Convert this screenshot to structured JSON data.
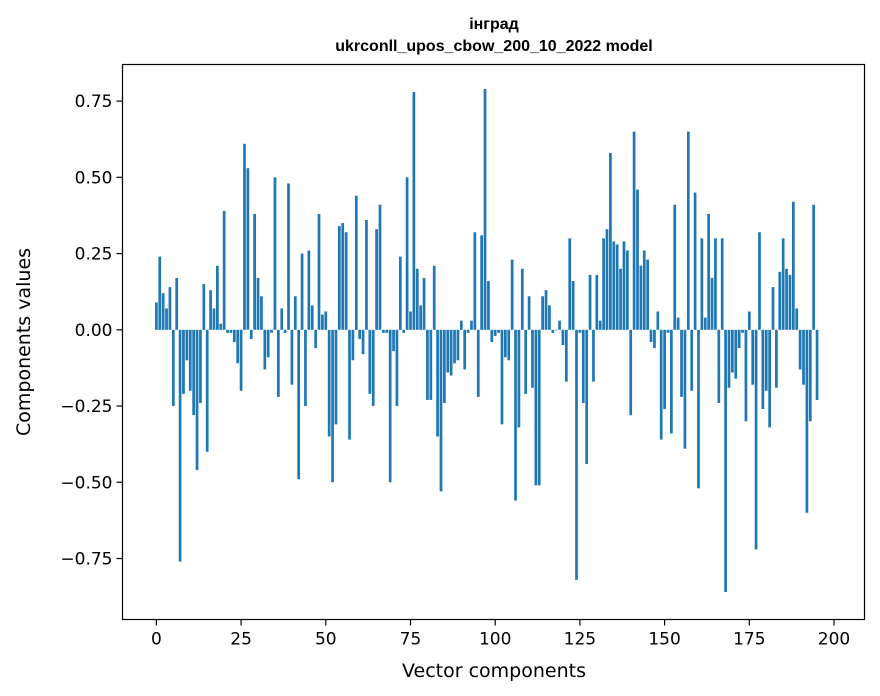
{
  "chart_data": {
    "type": "bar",
    "title": "інград",
    "subtitle": "ukrconll_upos_cbow_200_10_2022 model",
    "xlabel": "Vector components",
    "ylabel": "Components values",
    "xlim": [
      -10,
      209
    ],
    "ylim": [
      -0.95,
      0.87
    ],
    "xticks": [
      0,
      25,
      50,
      75,
      100,
      125,
      150,
      175,
      200
    ],
    "xtick_labels": [
      "0",
      "25",
      "50",
      "75",
      "100",
      "125",
      "150",
      "175",
      "200"
    ],
    "yticks": [
      -0.75,
      -0.5,
      -0.25,
      0.0,
      0.25,
      0.5,
      0.75
    ],
    "ytick_labels": [
      "−0.75",
      "−0.50",
      "−0.25",
      "0.00",
      "0.25",
      "0.50",
      "0.75"
    ],
    "bar_color": "#1f77b4",
    "grid": false,
    "values": [
      0.09,
      0.24,
      0.12,
      0.07,
      0.14,
      -0.25,
      0.17,
      -0.76,
      -0.21,
      -0.1,
      -0.2,
      -0.28,
      -0.46,
      -0.24,
      0.15,
      -0.4,
      0.13,
      0.07,
      0.21,
      0.02,
      0.39,
      -0.01,
      -0.01,
      -0.04,
      -0.11,
      -0.2,
      0.61,
      0.53,
      -0.03,
      0.38,
      0.17,
      0.11,
      -0.13,
      -0.09,
      -0.01,
      0.5,
      -0.22,
      0.07,
      -0.01,
      0.48,
      -0.18,
      0.11,
      -0.49,
      0.25,
      -0.25,
      0.26,
      0.08,
      -0.06,
      0.38,
      0.05,
      0.06,
      -0.35,
      -0.5,
      -0.31,
      0.34,
      0.35,
      0.32,
      -0.36,
      -0.1,
      0.44,
      -0.03,
      -0.08,
      0.36,
      -0.21,
      -0.25,
      0.33,
      0.41,
      -0.01,
      -0.01,
      -0.5,
      -0.07,
      -0.25,
      0.24,
      -0.01,
      0.5,
      0.06,
      0.78,
      0.2,
      0.08,
      0.17,
      -0.23,
      -0.23,
      0.21,
      -0.35,
      -0.53,
      -0.24,
      -0.14,
      -0.15,
      -0.11,
      -0.1,
      0.03,
      -0.13,
      -0.01,
      0.03,
      0.32,
      -0.22,
      0.31,
      0.79,
      0.16,
      -0.04,
      -0.02,
      -0.01,
      -0.31,
      -0.09,
      -0.1,
      0.23,
      -0.56,
      -0.32,
      0.2,
      -0.21,
      0.11,
      -0.19,
      -0.51,
      -0.51,
      0.11,
      0.13,
      0.08,
      -0.01,
      0.0,
      0.03,
      -0.05,
      -0.17,
      0.3,
      0.16,
      -0.82,
      -0.01,
      -0.24,
      -0.44,
      0.18,
      -0.17,
      0.18,
      0.03,
      0.3,
      0.33,
      0.58,
      0.29,
      0.28,
      0.2,
      0.29,
      0.26,
      -0.28,
      0.65,
      0.46,
      0.21,
      0.26,
      0.23,
      -0.04,
      -0.06,
      0.06,
      -0.36,
      -0.26,
      -0.01,
      -0.34,
      0.41,
      0.04,
      -0.22,
      -0.39,
      0.65,
      -0.2,
      0.45,
      -0.52,
      0.3,
      0.04,
      0.38,
      0.17,
      0.3,
      -0.24,
      0.3,
      -0.86,
      -0.19,
      -0.14,
      -0.16,
      -0.06,
      -0.01,
      -0.3,
      0.06,
      -0.18,
      -0.72,
      0.32,
      -0.26,
      -0.2,
      -0.32,
      0.14,
      -0.19,
      0.19,
      0.3,
      0.2,
      0.18,
      0.42,
      0.07,
      -0.13,
      -0.18,
      -0.6,
      -0.3,
      0.41,
      -0.23
    ]
  }
}
